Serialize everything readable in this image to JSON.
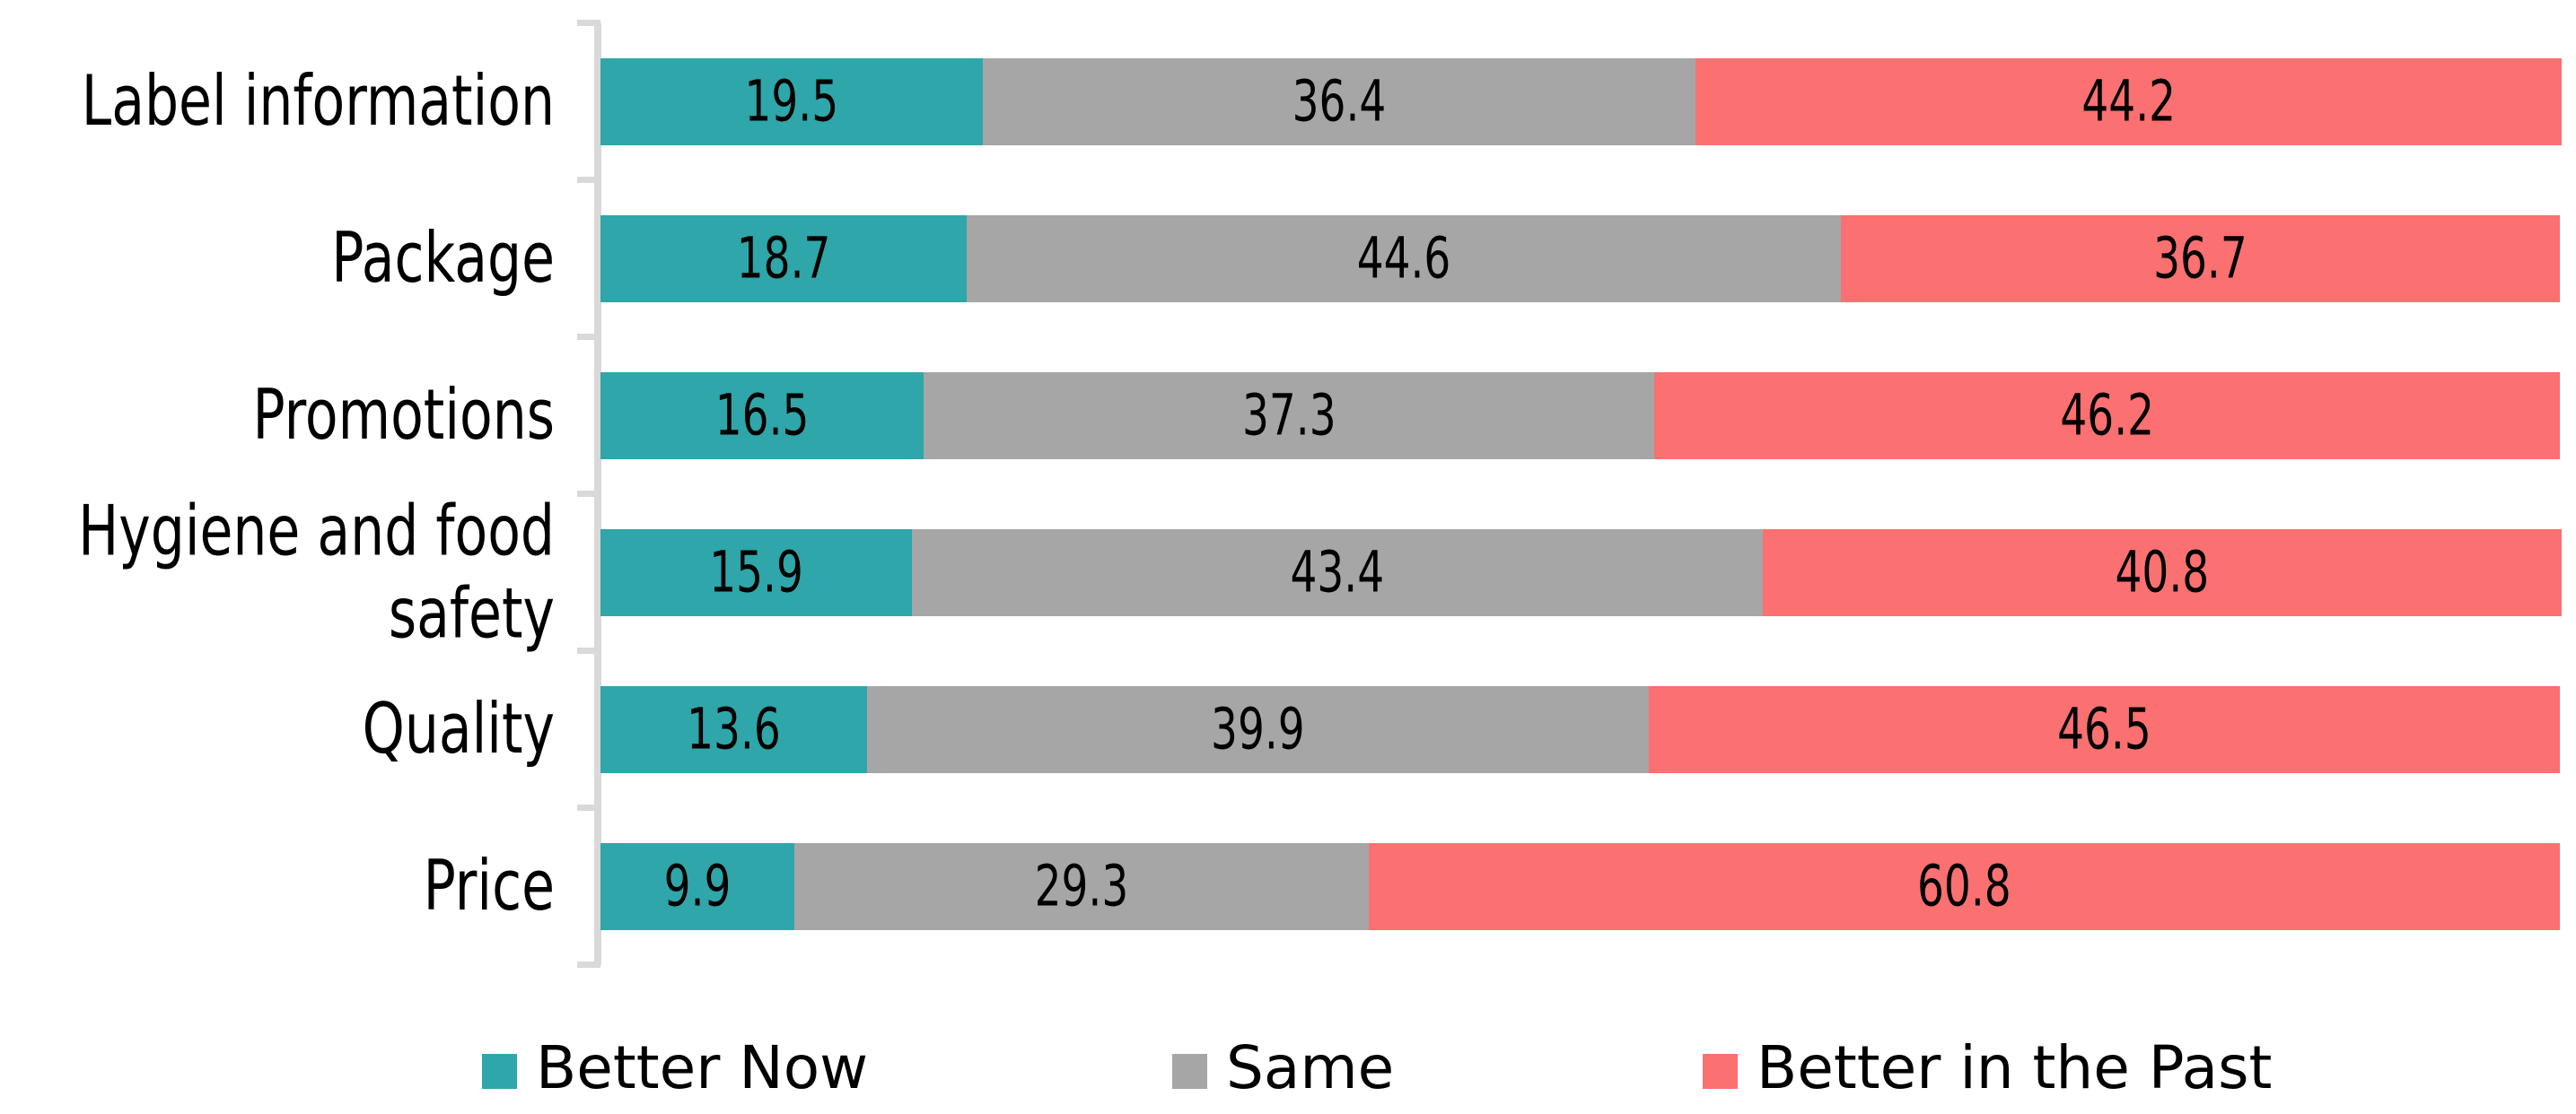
{
  "chart_data": {
    "type": "bar",
    "orientation": "horizontal",
    "stacked": true,
    "units": "percent",
    "title": "",
    "xlabel": "",
    "ylabel": "",
    "xlim": [
      0,
      100
    ],
    "grid": false,
    "value_labels_position": "inside-center",
    "legend_position": "bottom",
    "axis_color": "#D9D9D9",
    "text_color": "#000000",
    "background_color": "#FFFFFF",
    "categories": [
      "Label information",
      "Package",
      "Promotions",
      "Hygiene and food safety",
      "Quality",
      "Price"
    ],
    "series": [
      {
        "name": "Better Now",
        "color": "#2EA6AA",
        "values": [
          19.5,
          18.7,
          16.5,
          15.9,
          13.6,
          9.9
        ]
      },
      {
        "name": "Same",
        "color": "#A6A6A6",
        "values": [
          36.4,
          44.6,
          37.3,
          43.4,
          39.9,
          29.3
        ]
      },
      {
        "name": "Better in the Past",
        "color": "#FB7070",
        "values": [
          44.2,
          36.7,
          46.2,
          40.8,
          46.5,
          60.8
        ]
      }
    ]
  }
}
